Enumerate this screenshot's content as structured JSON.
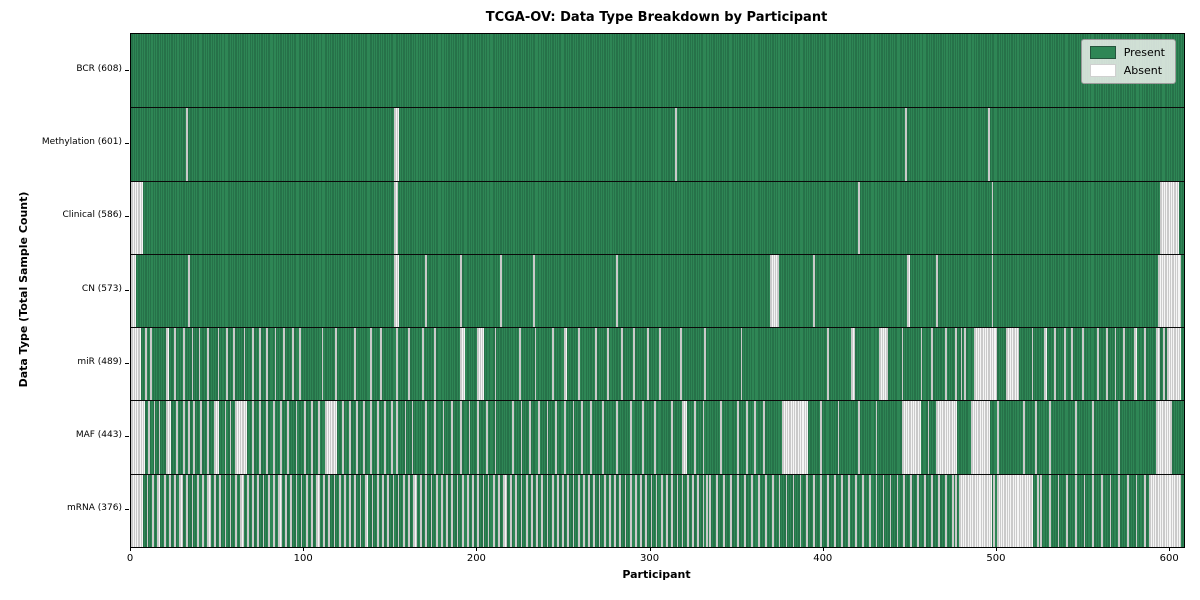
{
  "colors": {
    "present": "#2e8655",
    "present_edge": "#1e5e3d",
    "absent": "#f5f5f5",
    "absent_edge": "#9f9f9f",
    "separator": "#0a0a0a",
    "legend_bg": "#ecf0ec"
  },
  "chart_data": {
    "type": "heatmap",
    "title": "TCGA-OV: Data Type Breakdown by Participant",
    "xlabel": "Participant",
    "ylabel": "Data Type (Total Sample Count)",
    "legend": {
      "present": "Present",
      "absent": "Absent"
    },
    "n_participants": 608,
    "xlim": [
      0,
      608
    ],
    "x_ticks": [
      0,
      100,
      200,
      300,
      400,
      500,
      600
    ],
    "grid": false,
    "legend_position": "upper-right",
    "rows": [
      {
        "name": "BCR",
        "label": "BCR (608)",
        "present_count": 608,
        "absent_count": 0,
        "absent_ranges": []
      },
      {
        "name": "Methylation",
        "label": "Methylation (601)",
        "present_count": 601,
        "absent_count": 7,
        "absent_ranges": [
          32,
          [
            152,
            154
          ],
          314,
          447,
          495
        ]
      },
      {
        "name": "Clinical",
        "label": "Clinical (586)",
        "present_count": 586,
        "absent_count": 22,
        "absent_ranges": [
          [
            0,
            6
          ],
          [
            152,
            153
          ],
          420,
          497,
          [
            594,
            604
          ]
        ]
      },
      {
        "name": "CN",
        "label": "CN (573)",
        "present_count": 573,
        "absent_count": 35,
        "absent_ranges": [
          [
            0,
            2
          ],
          33,
          [
            152,
            154
          ],
          170,
          190,
          213,
          232,
          280,
          [
            369,
            373
          ],
          394,
          [
            448,
            449
          ],
          465,
          497,
          [
            593,
            605
          ]
        ]
      },
      {
        "name": "miR",
        "label": "miR (489)",
        "present_count": 489,
        "absent_count": 119,
        "absent_ranges": [
          [
            0,
            5
          ],
          8,
          11,
          [
            20,
            21
          ],
          25,
          30,
          35,
          39,
          44,
          50,
          55,
          59,
          65,
          70,
          74,
          78,
          83,
          88,
          93,
          97,
          110,
          118,
          129,
          138,
          144,
          153,
          160,
          168,
          175,
          [
            190,
            192
          ],
          [
            200,
            203
          ],
          210,
          224,
          233,
          243,
          [
            250,
            251
          ],
          258,
          268,
          275,
          283,
          290,
          298,
          305,
          317,
          331,
          352,
          402,
          [
            416,
            417
          ],
          [
            432,
            436
          ],
          445,
          456,
          462,
          470,
          476,
          479,
          481,
          [
            487,
            499
          ],
          [
            505,
            512
          ],
          520,
          [
            527,
            528
          ],
          533,
          539,
          543,
          549,
          558,
          563,
          568,
          573,
          [
            579,
            580
          ],
          585,
          [
            592,
            593
          ],
          596,
          [
            598,
            605
          ]
        ]
      },
      {
        "name": "MAF",
        "label": "MAF (443)",
        "present_count": 443,
        "absent_count": 165,
        "absent_ranges": [
          [
            0,
            7
          ],
          10,
          13,
          16,
          [
            20,
            22
          ],
          26,
          30,
          33,
          36,
          40,
          44,
          [
            48,
            50
          ],
          54,
          57,
          [
            60,
            66
          ],
          70,
          74,
          78,
          82,
          86,
          90,
          95,
          100,
          104,
          108,
          [
            112,
            118
          ],
          122,
          126,
          130,
          134,
          138,
          142,
          146,
          150,
          153,
          158,
          162,
          170,
          175,
          180,
          185,
          190,
          195,
          200,
          205,
          210,
          220,
          225,
          230,
          235,
          240,
          245,
          250,
          255,
          260,
          265,
          272,
          280,
          288,
          295,
          302,
          312,
          [
            318,
            320
          ],
          325,
          330,
          340,
          350,
          355,
          360,
          365,
          [
            376,
            390
          ],
          398,
          408,
          420,
          430,
          [
            445,
            455
          ],
          460,
          [
            465,
            476
          ],
          [
            485,
            495
          ],
          500,
          515,
          522,
          530,
          545,
          555,
          570,
          [
            592,
            600
          ]
        ]
      },
      {
        "name": "mRNA",
        "label": "mRNA (376)",
        "present_count": 376,
        "absent_count": 232,
        "absent_ranges": [
          [
            0,
            6
          ],
          9,
          12,
          [
            15,
            16
          ],
          19,
          22,
          25,
          [
            28,
            29
          ],
          32,
          35,
          38,
          41,
          [
            44,
            45
          ],
          48,
          51,
          54,
          57,
          60,
          [
            63,
            64
          ],
          67,
          70,
          73,
          76,
          79,
          82,
          [
            85,
            86
          ],
          89,
          92,
          95,
          98,
          101,
          104,
          [
            107,
            108
          ],
          111,
          114,
          117,
          120,
          123,
          126,
          129,
          132,
          [
            135,
            136
          ],
          139,
          142,
          145,
          148,
          151,
          154,
          157,
          160,
          [
            163,
            164
          ],
          167,
          170,
          173,
          176,
          179,
          182,
          185,
          188,
          191,
          194,
          197,
          200,
          203,
          206,
          209,
          212,
          [
            215,
            216
          ],
          219,
          222,
          225,
          228,
          231,
          234,
          237,
          240,
          243,
          246,
          249,
          252,
          255,
          258,
          261,
          264,
          267,
          270,
          273,
          276,
          279,
          282,
          285,
          288,
          291,
          294,
          297,
          300,
          303,
          306,
          309,
          312,
          315,
          318,
          321,
          324,
          327,
          330,
          332,
          334,
          338,
          342,
          346,
          350,
          354,
          358,
          362,
          366,
          370,
          374,
          378,
          382,
          386,
          390,
          394,
          398,
          402,
          406,
          410,
          414,
          418,
          422,
          426,
          430,
          434,
          438,
          442,
          446,
          450,
          454,
          458,
          462,
          466,
          470,
          474,
          476,
          [
            478,
            496
          ],
          498,
          [
            500,
            520
          ],
          523,
          525,
          530,
          535,
          540,
          545,
          550,
          555,
          560,
          565,
          570,
          575,
          580,
          585,
          [
            588,
            605
          ]
        ]
      }
    ]
  }
}
